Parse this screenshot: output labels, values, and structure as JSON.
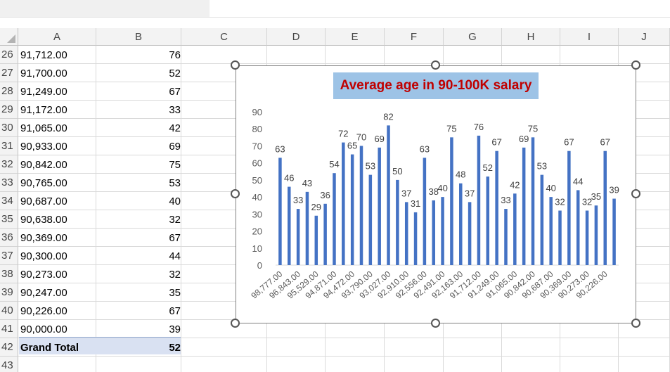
{
  "columns": [
    "A",
    "B",
    "C",
    "D",
    "E",
    "F",
    "G",
    "H",
    "I",
    "J"
  ],
  "rows": [
    {
      "num": "26",
      "a": "91,712.00",
      "b": "76"
    },
    {
      "num": "27",
      "a": "91,700.00",
      "b": "52"
    },
    {
      "num": "28",
      "a": "91,249.00",
      "b": "67"
    },
    {
      "num": "29",
      "a": "91,172.00",
      "b": "33"
    },
    {
      "num": "30",
      "a": "91,065.00",
      "b": "42"
    },
    {
      "num": "31",
      "a": "90,933.00",
      "b": "69"
    },
    {
      "num": "32",
      "a": "90,842.00",
      "b": "75"
    },
    {
      "num": "33",
      "a": "90,765.00",
      "b": "53"
    },
    {
      "num": "34",
      "a": "90,687.00",
      "b": "40"
    },
    {
      "num": "35",
      "a": "90,638.00",
      "b": "32"
    },
    {
      "num": "36",
      "a": "90,369.00",
      "b": "67"
    },
    {
      "num": "37",
      "a": "90,300.00",
      "b": "44"
    },
    {
      "num": "38",
      "a": "90,273.00",
      "b": "32"
    },
    {
      "num": "39",
      "a": "90,247.00",
      "b": "35"
    },
    {
      "num": "40",
      "a": "90,226.00",
      "b": "67"
    },
    {
      "num": "41",
      "a": "90,000.00",
      "b": "39"
    },
    {
      "num": "42",
      "a": "Grand Total",
      "b": "52"
    },
    {
      "num": "43",
      "a": "",
      "b": ""
    }
  ],
  "colors": {
    "bar": "#4472c4",
    "title_bg": "#9dc3e6",
    "title_text": "#c00000",
    "total_row_bg": "#d9e1f2"
  },
  "chart_data": {
    "type": "bar",
    "title": "Average age in 90-100K salary",
    "ylim": [
      0,
      90
    ],
    "yticks": [
      0,
      10,
      20,
      30,
      40,
      50,
      60,
      70,
      80,
      90
    ],
    "grid": false,
    "legend": "none",
    "data_labels": true,
    "values": [
      63,
      46,
      33,
      43,
      29,
      36,
      54,
      72,
      65,
      70,
      53,
      69,
      82,
      50,
      37,
      31,
      63,
      38,
      40,
      75,
      48,
      37,
      76,
      52,
      67,
      33,
      42,
      69,
      75,
      53,
      40,
      32,
      67,
      44,
      32,
      35,
      67,
      39
    ],
    "category_labels": [
      "98,777.00",
      "96,843.00",
      "95,529.00",
      "94,871.00",
      "94,472.00",
      "93,790.00",
      "93,027.00",
      "92,910.00",
      "92,556.00",
      "92,491.00",
      "92,163.00",
      "91,712.00",
      "91,249.00",
      "91,065.00",
      "90,842.00",
      "90,687.00",
      "90,369.00",
      "90,273.00",
      "90,226.00"
    ]
  }
}
